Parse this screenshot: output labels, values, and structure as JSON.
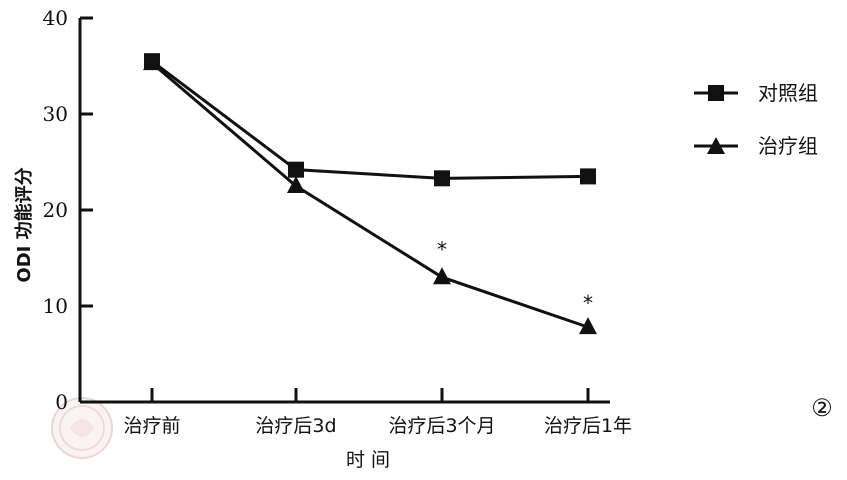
{
  "chart_data": {
    "type": "line",
    "ylabel": "ODI 功能评分",
    "xlabel": "时 间",
    "categories": [
      "治疗前",
      "治疗后3d",
      "治疗后3个月",
      "治疗后1年"
    ],
    "ylim": [
      0,
      40
    ],
    "yticks": [
      "0",
      "10",
      "20",
      "30",
      "40"
    ],
    "grid": false,
    "legend_position": "right",
    "series": [
      {
        "name": "对照组",
        "marker": "square",
        "values": [
          35.5,
          24.2,
          23.3,
          23.5
        ]
      },
      {
        "name": "治疗组",
        "marker": "triangle",
        "values": [
          35.3,
          22.5,
          13.0,
          7.8
        ]
      }
    ],
    "annotations": [
      {
        "category_index": 2,
        "text": "*",
        "y": 16.0
      },
      {
        "category_index": 3,
        "text": "*",
        "y": 10.4
      }
    ],
    "panel_label": "②",
    "line_color": "#111111"
  }
}
